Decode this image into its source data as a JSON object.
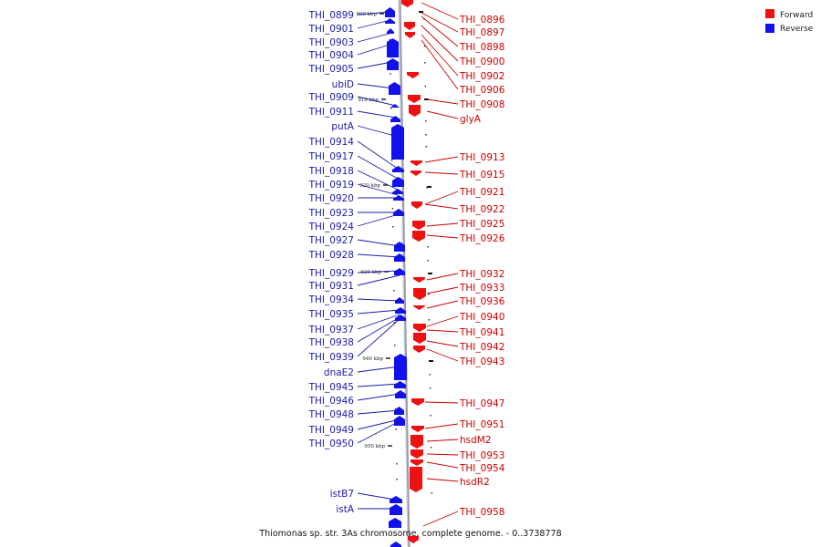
{
  "caption": "Thiomonas sp. str. 3As chromosome, complete genome. - 0..3738778",
  "legend": [
    {
      "label": "Forward",
      "color": "#ee1111"
    },
    {
      "label": "Reverse",
      "color": "#1111ee"
    }
  ],
  "colors": {
    "forward": "#ee1111",
    "reverse": "#1111ee",
    "forward_label": "#cc0000",
    "reverse_label": "#1a1aa8",
    "backbone": "#9a9aa8"
  },
  "ticks": [
    "900 kbp",
    "910 kbp",
    "920 kbp",
    "930 kbp",
    "940 kbp",
    "950 kbp"
  ],
  "reverse_genes": [
    "THI_0899",
    "THI_0901",
    "THI_0903",
    "THI_0904",
    "THI_0905",
    "ubiD",
    "THI_0909",
    "THI_0911",
    "putA",
    "THI_0914",
    "THI_0917",
    "THI_0918",
    "THI_0919",
    "THI_0920",
    "THI_0923",
    "THI_0924",
    "THI_0927",
    "THI_0928",
    "THI_0929",
    "THI_0931",
    "THI_0934",
    "THI_0935",
    "THI_0937",
    "THI_0938",
    "THI_0939",
    "dnaE2",
    "THI_0945",
    "THI_0946",
    "THI_0948",
    "THI_0949",
    "THI_0950",
    "istB7",
    "istA"
  ],
  "forward_genes": [
    "THI_0896",
    "THI_0897",
    "THI_0898",
    "THI_0900",
    "THI_0902",
    "THI_0906",
    "THI_0908",
    "glyA",
    "THI_0913",
    "THI_0915",
    "THI_0921",
    "THI_0922",
    "THI_0925",
    "THI_0926",
    "THI_0932",
    "THI_0933",
    "THI_0936",
    "THI_0940",
    "THI_0941",
    "THI_0942",
    "THI_0943",
    "THI_0947",
    "THI_0951",
    "hsdM2",
    "THI_0953",
    "THI_0954",
    "hsdR2",
    "THI_0958"
  ]
}
